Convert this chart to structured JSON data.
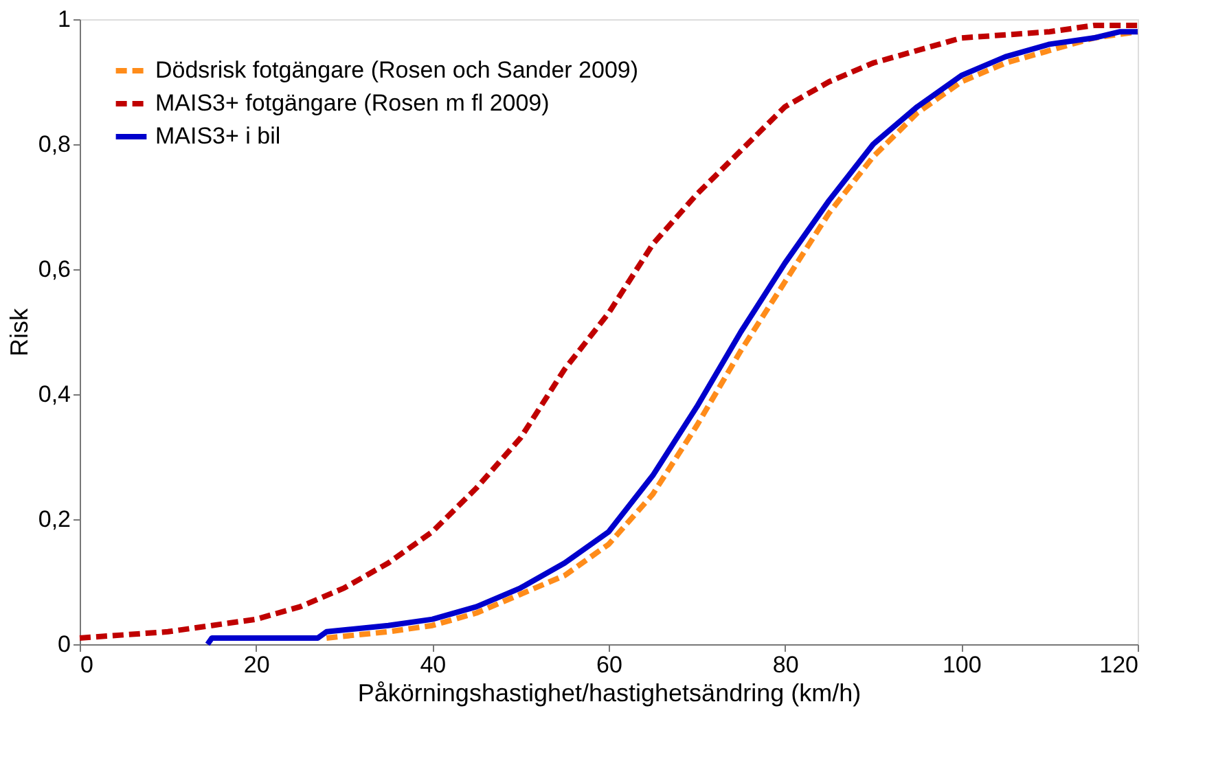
{
  "chart_data": {
    "type": "line",
    "xlabel": "Påkörningshastighet/hastighetsändring (km/h)",
    "ylabel": "Risk",
    "xlim": [
      0,
      120
    ],
    "xticks": [
      0,
      20,
      40,
      60,
      80,
      100,
      120
    ],
    "ylim": [
      0,
      1
    ],
    "yticks": [
      0,
      {
        "value": 0.2,
        "label": "0,2"
      },
      {
        "value": 0.4,
        "label": "0,4"
      },
      {
        "value": 0.6,
        "label": "0,6"
      },
      {
        "value": 0.8,
        "label": "0,8"
      },
      1
    ],
    "grid": false,
    "legend": "top left",
    "marker": "none",
    "series": [
      {
        "name": "Dödsrisk fotgängare (Rosen och Sander 2009)",
        "color": "#ff8c1a",
        "line_style": "dashed",
        "x": [
          28,
          35,
          40,
          45,
          50,
          55,
          60,
          65,
          70,
          75,
          80,
          85,
          90,
          95,
          100,
          105,
          110,
          115,
          120
        ],
        "values": [
          0.01,
          0.02,
          0.03,
          0.05,
          0.08,
          0.11,
          0.16,
          0.24,
          0.35,
          0.47,
          0.58,
          0.69,
          0.78,
          0.85,
          0.9,
          0.93,
          0.95,
          0.97,
          0.98
        ]
      },
      {
        "name": "MAIS3+ fotgängare (Rosen m fl 2009)",
        "color": "#c00000",
        "line_style": "dashed",
        "x": [
          0,
          10,
          15,
          20,
          25,
          30,
          35,
          40,
          45,
          50,
          55,
          60,
          65,
          70,
          75,
          80,
          85,
          90,
          95,
          100,
          105,
          110,
          115,
          120
        ],
        "values": [
          0.01,
          0.02,
          0.03,
          0.04,
          0.06,
          0.09,
          0.13,
          0.18,
          0.25,
          0.33,
          0.44,
          0.53,
          0.64,
          0.72,
          0.79,
          0.86,
          0.9,
          0.93,
          0.95,
          0.97,
          0.975,
          0.98,
          0.99,
          0.99
        ]
      },
      {
        "name": "MAIS3+ i bil",
        "color": "#0000cc",
        "line_style": "solid",
        "x": [
          14.5,
          15,
          27,
          28,
          35,
          40,
          45,
          50,
          55,
          60,
          65,
          70,
          75,
          80,
          85,
          90,
          95,
          100,
          105,
          110,
          115,
          118,
          120
        ],
        "values": [
          0,
          0.01,
          0.01,
          0.02,
          0.03,
          0.04,
          0.06,
          0.09,
          0.13,
          0.18,
          0.27,
          0.38,
          0.5,
          0.61,
          0.71,
          0.8,
          0.86,
          0.91,
          0.94,
          0.96,
          0.97,
          0.98,
          0.98
        ]
      }
    ]
  }
}
